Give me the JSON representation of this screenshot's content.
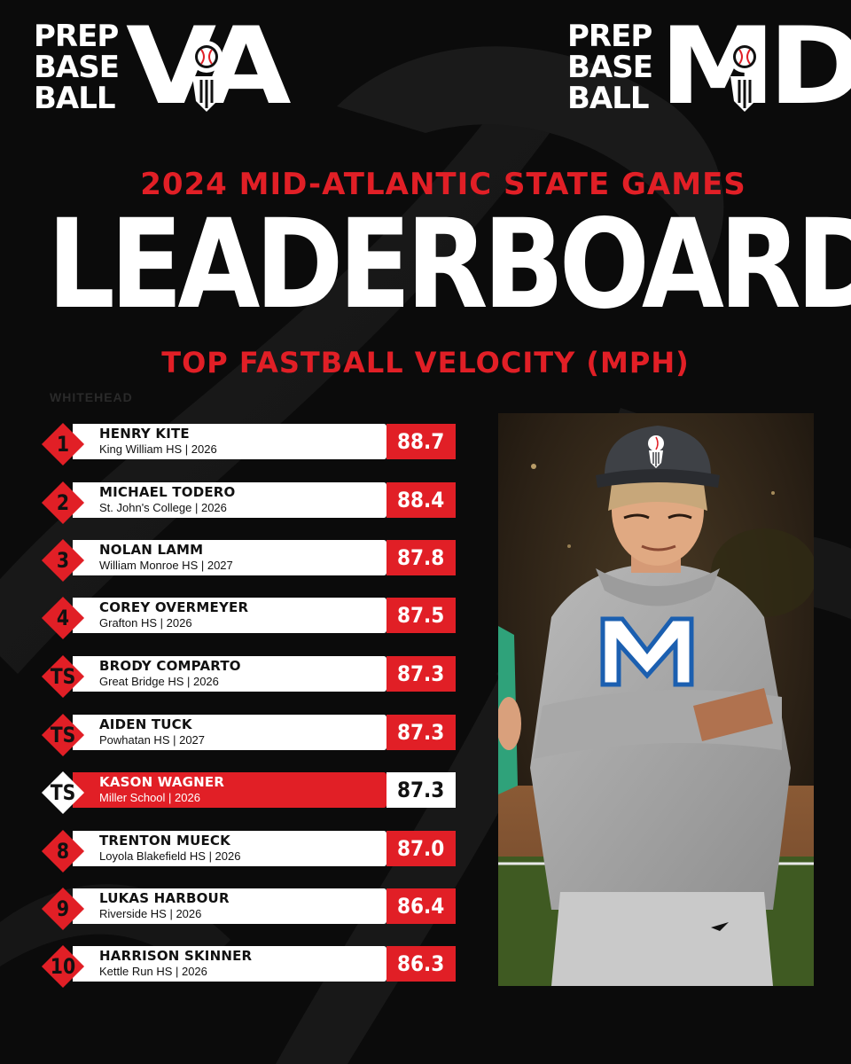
{
  "logos": {
    "left": {
      "words": [
        "PREP",
        "BASE",
        "BALL"
      ],
      "state": "VA"
    },
    "right": {
      "words": [
        "PREP",
        "BASE",
        "BALL"
      ],
      "state": "MD"
    }
  },
  "event_title": "2024 MID-ATLANTIC STATE GAMES",
  "main_title": "LEADERBOARD",
  "subtitle": "TOP FASTBALL VELOCITY (MPH)",
  "photo_credit": "WHITEHEAD",
  "colors": {
    "accent": "#e11f26",
    "background": "#0b0b0b",
    "bar": "#ffffff"
  },
  "leaders": [
    {
      "rank": "1",
      "name": "HENRY KITE",
      "school": "King William HS | 2026",
      "velo": "88.7"
    },
    {
      "rank": "2",
      "name": "MICHAEL TODERO",
      "school": "St. John's College | 2026",
      "velo": "88.4"
    },
    {
      "rank": "3",
      "name": "NOLAN LAMM",
      "school": "William Monroe HS | 2027",
      "velo": "87.8"
    },
    {
      "rank": "4",
      "name": "COREY OVERMEYER",
      "school": "Grafton HS | 2026",
      "velo": "87.5"
    },
    {
      "rank": "TS",
      "name": "BRODY COMPARTO",
      "school": "Great Bridge HS | 2026",
      "velo": "87.3"
    },
    {
      "rank": "TS",
      "name": "AIDEN TUCK",
      "school": "Powhatan HS | 2027",
      "velo": "87.3"
    },
    {
      "rank": "TS",
      "name": "KASON WAGNER",
      "school": "Miller School | 2026",
      "velo": "87.3",
      "highlighted": true
    },
    {
      "rank": "8",
      "name": "TRENTON MUECK",
      "school": "Loyola Blakefield HS | 2026",
      "velo": "87.0"
    },
    {
      "rank": "9",
      "name": "LUKAS HARBOUR",
      "school": "Riverside HS | 2026",
      "velo": "86.4"
    },
    {
      "rank": "10",
      "name": "HARRISON SKINNER",
      "school": "Kettle Run HS | 2026",
      "velo": "86.3"
    }
  ],
  "photo": {
    "subject": "player-portrait",
    "cap_logo_icon": "prep-baseball-shield-icon",
    "jersey_letter": "M"
  }
}
